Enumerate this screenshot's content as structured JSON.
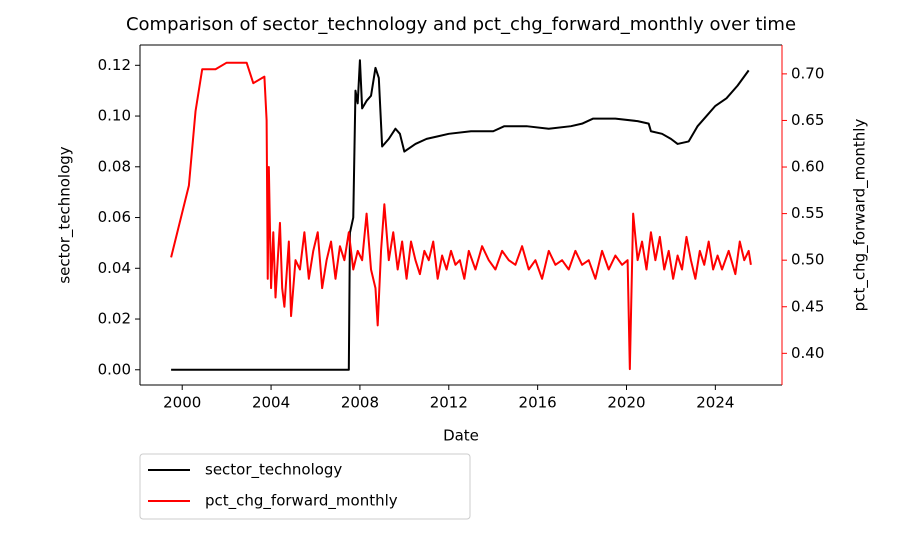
{
  "chart_data": {
    "type": "line",
    "title": "Comparison of sector_technology and pct_chg_forward_monthly over time",
    "xlabel": "Date",
    "ylabel": "sector_technology",
    "y2label": "pct_chg_forward_monthly",
    "xlim": [
      1998.1,
      2027.0
    ],
    "xticks": [
      2000,
      2004,
      2008,
      2012,
      2016,
      2020,
      2024
    ],
    "ylim": [
      -0.006,
      0.128
    ],
    "yticks": [
      {
        "value": 0,
        "label": "0.00"
      },
      {
        "value": 0.02,
        "label": "0.02"
      },
      {
        "value": 0.04,
        "label": "0.04"
      },
      {
        "value": 0.06,
        "label": "0.06"
      },
      {
        "value": 0.08,
        "label": "0.08"
      },
      {
        "value": 0.1,
        "label": "0.10"
      },
      {
        "value": 0.12,
        "label": "0.12"
      }
    ],
    "y2lim": [
      0.366,
      0.731
    ],
    "y2ticks": [
      {
        "value": 0.4,
        "label": "0.40"
      },
      {
        "value": 0.45,
        "label": "0.45"
      },
      {
        "value": 0.5,
        "label": "0.50"
      },
      {
        "value": 0.55,
        "label": "0.55"
      },
      {
        "value": 0.6,
        "label": "0.60"
      },
      {
        "value": 0.65,
        "label": "0.65"
      },
      {
        "value": 0.7,
        "label": "0.70"
      }
    ],
    "y2color": "#ff0000",
    "legend": "below-left",
    "series": [
      {
        "name": "sector_technology",
        "color": "#000000",
        "x": [
          1999.5,
          2007.5,
          2007.55,
          2007.7,
          2007.8,
          2007.9,
          2008.0,
          2008.1,
          2008.3,
          2008.5,
          2008.7,
          2008.85,
          2009.0,
          2009.3,
          2009.6,
          2009.8,
          2010.0,
          2010.5,
          2011.0,
          2011.5,
          2012.0,
          2013.0,
          2014.0,
          2014.5,
          2015.5,
          2016.5,
          2017.5,
          2018.0,
          2018.5,
          2019.5,
          2020.5,
          2021.0,
          2021.1,
          2021.6,
          2022.0,
          2022.3,
          2022.8,
          2023.2,
          2023.6,
          2024.0,
          2024.5,
          2025.0,
          2025.5
        ],
        "values": [
          0,
          0,
          0.054,
          0.06,
          0.11,
          0.105,
          0.122,
          0.103,
          0.106,
          0.108,
          0.119,
          0.115,
          0.088,
          0.091,
          0.095,
          0.093,
          0.086,
          0.089,
          0.091,
          0.092,
          0.093,
          0.094,
          0.094,
          0.096,
          0.096,
          0.095,
          0.096,
          0.097,
          0.099,
          0.099,
          0.098,
          0.097,
          0.094,
          0.093,
          0.091,
          0.089,
          0.09,
          0.096,
          0.1,
          0.104,
          0.107,
          0.112,
          0.118
        ]
      },
      {
        "name": "pct_chg_forward_monthly",
        "color": "#ff0000",
        "axis": "y2",
        "x": [
          1999.5,
          2000.3,
          2000.6,
          2000.9,
          2001.5,
          2002.0,
          2002.9,
          2003.2,
          2003.7,
          2003.8,
          2003.85,
          2003.9,
          2004.0,
          2004.1,
          2004.2,
          2004.4,
          2004.5,
          2004.6,
          2004.8,
          2004.9,
          2005.1,
          2005.3,
          2005.5,
          2005.7,
          2005.9,
          2006.1,
          2006.3,
          2006.5,
          2006.7,
          2006.9,
          2007.1,
          2007.3,
          2007.5,
          2007.7,
          2007.9,
          2008.1,
          2008.3,
          2008.5,
          2008.7,
          2008.8,
          2008.95,
          2009.1,
          2009.3,
          2009.5,
          2009.7,
          2009.9,
          2010.1,
          2010.3,
          2010.5,
          2010.7,
          2010.9,
          2011.1,
          2011.3,
          2011.5,
          2011.7,
          2011.9,
          2012.1,
          2012.3,
          2012.5,
          2012.7,
          2012.9,
          2013.2,
          2013.5,
          2013.8,
          2014.1,
          2014.4,
          2014.7,
          2015.0,
          2015.3,
          2015.6,
          2015.9,
          2016.2,
          2016.5,
          2016.8,
          2017.1,
          2017.4,
          2017.7,
          2018.0,
          2018.3,
          2018.6,
          2018.9,
          2019.2,
          2019.5,
          2019.8,
          2020.05,
          2020.15,
          2020.3,
          2020.5,
          2020.7,
          2020.9,
          2021.1,
          2021.3,
          2021.5,
          2021.7,
          2021.9,
          2022.1,
          2022.3,
          2022.5,
          2022.7,
          2022.9,
          2023.1,
          2023.3,
          2023.5,
          2023.7,
          2023.9,
          2024.1,
          2024.3,
          2024.6,
          2024.9,
          2025.1,
          2025.3,
          2025.5,
          2025.6
        ],
        "values": [
          0.503,
          0.58,
          0.66,
          0.705,
          0.705,
          0.712,
          0.712,
          0.69,
          0.697,
          0.65,
          0.48,
          0.6,
          0.47,
          0.53,
          0.46,
          0.54,
          0.47,
          0.45,
          0.52,
          0.44,
          0.5,
          0.49,
          0.53,
          0.48,
          0.51,
          0.53,
          0.47,
          0.5,
          0.52,
          0.48,
          0.515,
          0.5,
          0.53,
          0.49,
          0.51,
          0.5,
          0.55,
          0.49,
          0.47,
          0.43,
          0.51,
          0.56,
          0.5,
          0.53,
          0.49,
          0.52,
          0.48,
          0.52,
          0.5,
          0.485,
          0.51,
          0.5,
          0.52,
          0.48,
          0.505,
          0.49,
          0.51,
          0.495,
          0.5,
          0.48,
          0.51,
          0.49,
          0.515,
          0.5,
          0.49,
          0.51,
          0.5,
          0.495,
          0.515,
          0.49,
          0.5,
          0.48,
          0.51,
          0.495,
          0.5,
          0.49,
          0.51,
          0.495,
          0.5,
          0.48,
          0.51,
          0.49,
          0.505,
          0.495,
          0.5,
          0.383,
          0.55,
          0.5,
          0.52,
          0.49,
          0.53,
          0.5,
          0.525,
          0.49,
          0.51,
          0.48,
          0.505,
          0.49,
          0.525,
          0.5,
          0.48,
          0.51,
          0.495,
          0.52,
          0.49,
          0.505,
          0.49,
          0.51,
          0.485,
          0.52,
          0.5,
          0.51,
          0.495
        ]
      }
    ]
  }
}
